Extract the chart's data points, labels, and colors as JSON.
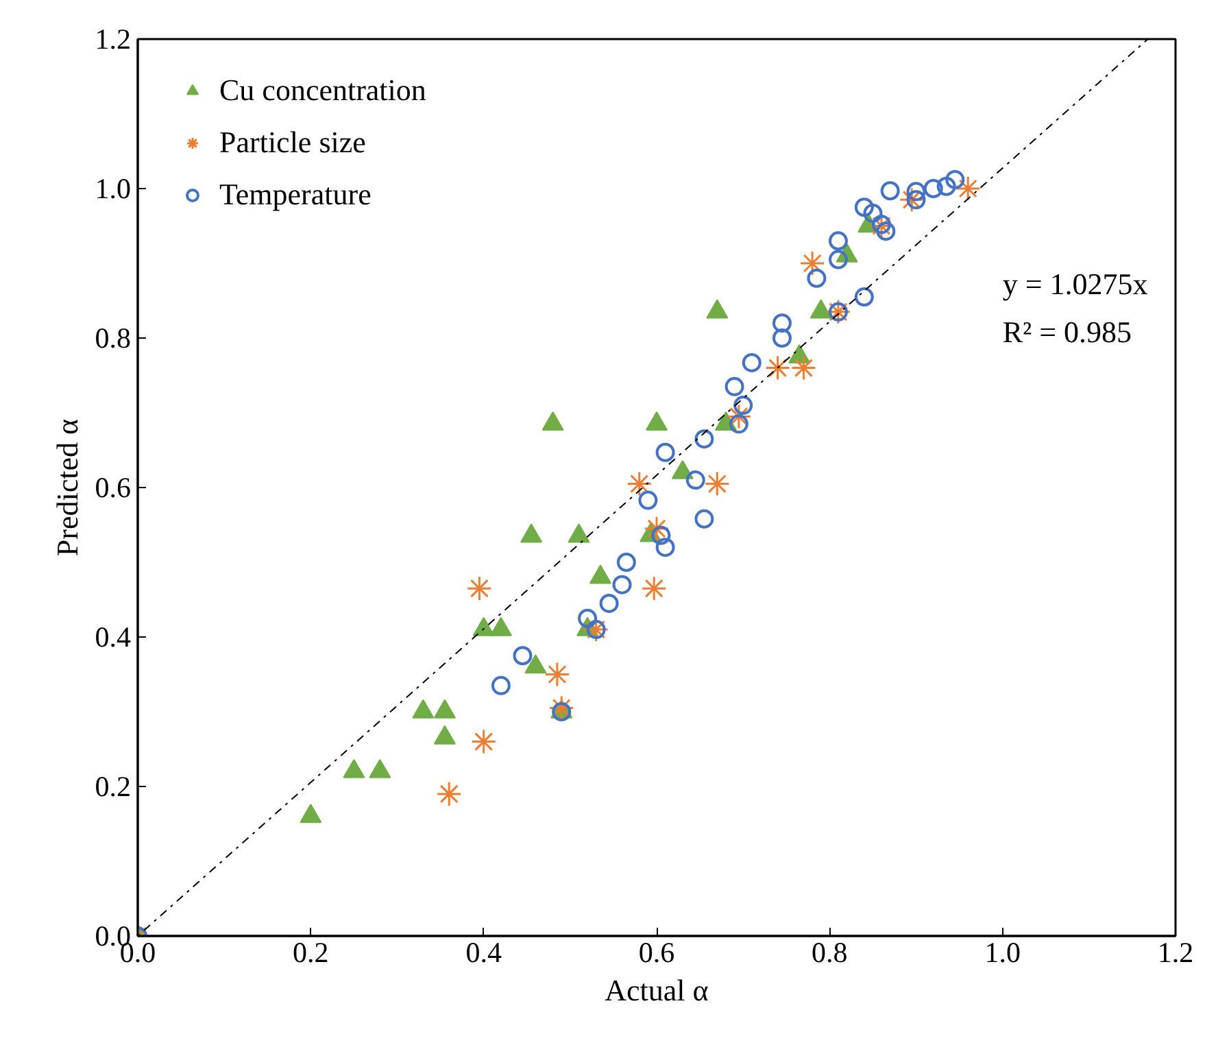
{
  "chart_data": {
    "type": "scatter",
    "xlabel": "Actual α",
    "ylabel": "Predicted α",
    "xlim": [
      0,
      1.2
    ],
    "ylim": [
      0,
      1.2
    ],
    "xticks": [
      {
        "value": 0,
        "label": "0.0"
      },
      {
        "value": 0.2,
        "label": "0.2"
      },
      {
        "value": 0.4,
        "label": "0.4"
      },
      {
        "value": 0.6,
        "label": "0.6"
      },
      {
        "value": 0.8,
        "label": "0.8"
      },
      {
        "value": 1.0,
        "label": "1.0"
      },
      {
        "value": 1.2,
        "label": "1.2"
      }
    ],
    "yticks": [
      {
        "value": 0,
        "label": "0.0"
      },
      {
        "value": 0.2,
        "label": "0.2"
      },
      {
        "value": 0.4,
        "label": "0.4"
      },
      {
        "value": 0.6,
        "label": "0.6"
      },
      {
        "value": 0.8,
        "label": "0.8"
      },
      {
        "value": 1.0,
        "label": "1.0"
      },
      {
        "value": 1.2,
        "label": "1.2"
      }
    ],
    "grid": false,
    "legend": "top left",
    "annotations": [
      "y = 1.0275x",
      "R² = 0.985"
    ],
    "series": [
      {
        "name": "Cu concentration",
        "color": "#70ad47",
        "marker": "triangle",
        "x": [
          0,
          0.2,
          0.25,
          0.28,
          0.33,
          0.355,
          0.355,
          0.4,
          0.42,
          0.46,
          0.455,
          0.48,
          0.49,
          0.51,
          0.535,
          0.52,
          0.593,
          0.6,
          0.63,
          0.68,
          0.67,
          0.765,
          0.79,
          0.82,
          0.845
        ],
        "values": [
          0,
          0.16,
          0.22,
          0.22,
          0.3,
          0.3,
          0.265,
          0.41,
          0.41,
          0.36,
          0.535,
          0.685,
          0.3,
          0.535,
          0.48,
          0.41,
          0.536,
          0.685,
          0.62,
          0.685,
          0.835,
          0.775,
          0.835,
          0.91,
          0.95
        ]
      },
      {
        "name": "Particle size",
        "color": "#ed7d31",
        "marker": "cross",
        "x": [
          0,
          0.36,
          0.4,
          0.395,
          0.485,
          0.49,
          0.597,
          0.58,
          0.67,
          0.6,
          0.53,
          0.74,
          0.77,
          0.78,
          0.81,
          0.86,
          0.895,
          0.96,
          0.695
        ],
        "values": [
          0,
          0.19,
          0.26,
          0.465,
          0.35,
          0.305,
          0.465,
          0.605,
          0.605,
          0.545,
          0.41,
          0.76,
          0.76,
          0.9,
          0.835,
          0.95,
          0.985,
          1.0,
          0.695
        ]
      },
      {
        "name": "Temperature",
        "color": "#4472c4",
        "marker": "circle",
        "x": [
          0,
          0.42,
          0.445,
          0.52,
          0.53,
          0.49,
          0.545,
          0.56,
          0.565,
          0.59,
          0.605,
          0.61,
          0.61,
          0.645,
          0.655,
          0.655,
          0.695,
          0.7,
          0.69,
          0.71,
          0.745,
          0.745,
          0.785,
          0.81,
          0.84,
          0.81,
          0.81,
          0.84,
          0.85,
          0.86,
          0.865,
          0.87,
          0.9,
          0.9,
          0.92,
          0.935,
          0.945
        ],
        "values": [
          0,
          0.335,
          0.375,
          0.425,
          0.41,
          0.3,
          0.445,
          0.47,
          0.5,
          0.583,
          0.536,
          0.52,
          0.647,
          0.61,
          0.558,
          0.665,
          0.685,
          0.71,
          0.735,
          0.767,
          0.82,
          0.8,
          0.88,
          0.835,
          0.855,
          0.905,
          0.93,
          0.975,
          0.967,
          0.952,
          0.943,
          0.997,
          0.996,
          0.985,
          1.0,
          1.003,
          1.012
        ]
      },
      {
        "type": "line",
        "color": "#000000",
        "line_style": "dashdot",
        "x": [
          0,
          1.168
        ],
        "values": [
          0,
          1.2
        ]
      }
    ]
  }
}
